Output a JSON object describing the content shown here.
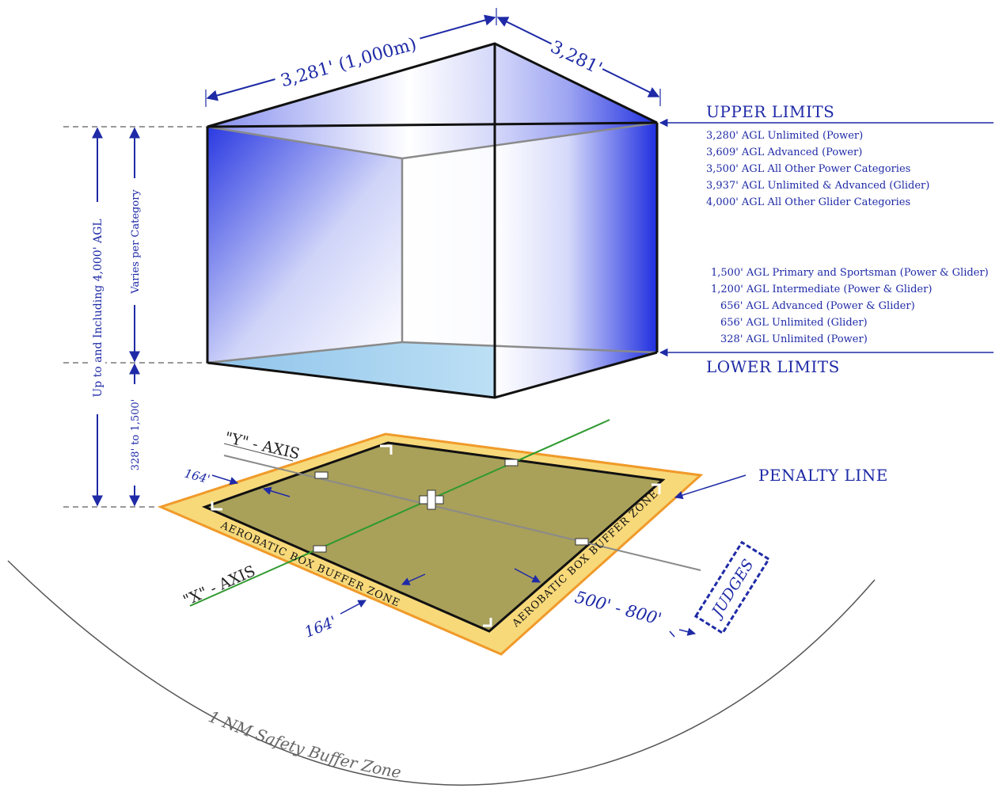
{
  "dimensions": {
    "length": "3,281' (1,000m)",
    "width": "3,281'",
    "total_height": "Up to and Including 4,000' AGL",
    "varies": "Varies per Category",
    "lower_range": "328' to 1,500'"
  },
  "upper_limits": {
    "heading": "UPPER LIMITS",
    "items": [
      "3,280' AGL Unlimited (Power)",
      "3,609' AGL Advanced (Power)",
      "3,500' AGL All Other Power Categories",
      "3,937' AGL Unlimited & Advanced (Glider)",
      "4,000' AGL All Other Glider Categories"
    ]
  },
  "lower_limits": {
    "heading": "LOWER LIMITS",
    "items": [
      "1,500' AGL Primary and Sportsman (Power & Glider)",
      "1,200' AGL Intermediate (Power & Glider)",
      "656' AGL Advanced (Power & Glider)",
      "656' AGL Unlimited (Glider)",
      "328' AGL Unlimited (Power)"
    ]
  },
  "ground": {
    "y_axis": "\"Y\" - AXIS",
    "x_axis": "\"X\" - AXIS",
    "buffer_width_left": "164'",
    "buffer_width_front": "164'",
    "buffer_zone_front": "AEROBATIC BOX BUFFER ZONE",
    "buffer_zone_right": "AEROBATIC BOX BUFFER ZONE",
    "penalty_line": "PENALTY LINE",
    "judges_distance": "500' - 800'",
    "judges": "JUDGES",
    "safety_zone": "1 NM Safety Buffer Zone"
  },
  "colors": {
    "ink": "#1e2aa6",
    "box_blue": "#1f2fe0",
    "ground_olive": "#a9a05a",
    "buffer_yellow": "#f7d97a",
    "axis_green": "#2f9a2f"
  }
}
